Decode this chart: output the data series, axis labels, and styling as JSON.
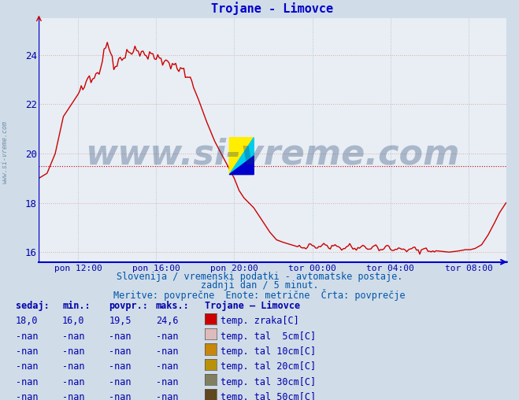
{
  "title": "Trojane - Limovce",
  "title_color": "#0000cc",
  "bg_color": "#d0dce8",
  "plot_bg_color": "#e8eef4",
  "line_color": "#cc0000",
  "avg_line_color": "#cc0000",
  "avg_line_value": 19.5,
  "ylim": [
    15.6,
    25.5
  ],
  "yticks": [
    16,
    18,
    20,
    22,
    24
  ],
  "tick_color": "#0000aa",
  "xtick_labels": [
    "pon 12:00",
    "pon 16:00",
    "pon 20:00",
    "tor 00:00",
    "tor 04:00",
    "tor 08:00"
  ],
  "watermark": "www.si-vreme.com",
  "watermark_color": "#1a3a6a",
  "watermark_alpha": 0.3,
  "subtitle1": "Slovenija / vremenski podatki - avtomatske postaje.",
  "subtitle2": "zadnji dan / 5 minut.",
  "subtitle3": "Meritve: povprečne  Enote: metrične  Črta: povprečje",
  "subtitle_color": "#0055aa",
  "table_header_cols": [
    "sedaj:",
    "min.:",
    "povpr.:",
    "maks.:"
  ],
  "table_header_station": "Trojane – Limovce",
  "table_rows": [
    [
      "18,0",
      "16,0",
      "19,5",
      "24,6",
      "temp. zraka[C]",
      "#cc0000"
    ],
    [
      "-nan",
      "-nan",
      "-nan",
      "-nan",
      "temp. tal  5cm[C]",
      "#ddbbbb"
    ],
    [
      "-nan",
      "-nan",
      "-nan",
      "-nan",
      "temp. tal 10cm[C]",
      "#c8860a"
    ],
    [
      "-nan",
      "-nan",
      "-nan",
      "-nan",
      "temp. tal 20cm[C]",
      "#b8920a"
    ],
    [
      "-nan",
      "-nan",
      "-nan",
      "-nan",
      "temp. tal 30cm[C]",
      "#808060"
    ],
    [
      "-nan",
      "-nan",
      "-nan",
      "-nan",
      "temp. tal 50cm[C]",
      "#604820"
    ]
  ],
  "side_label": "www.si-vreme.com",
  "side_label_color": "#7090a8"
}
